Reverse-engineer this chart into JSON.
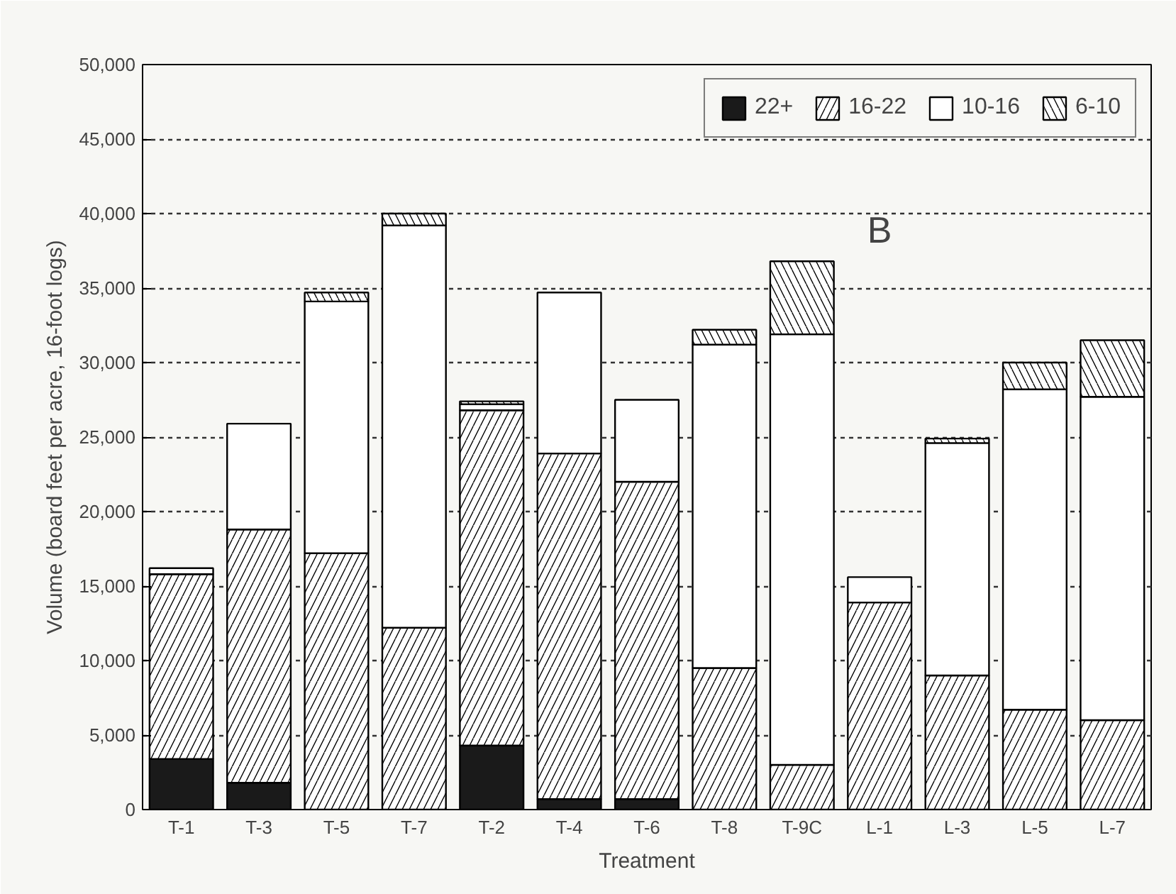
{
  "chart_data": {
    "type": "bar",
    "stacked": true,
    "xlabel": "Treatment",
    "ylabel": "Volume (board feet per acre, 16-foot logs)",
    "categories": [
      "T-1",
      "T-3",
      "T-5",
      "T-7",
      "T-2",
      "T-4",
      "T-6",
      "T-8",
      "T-9C",
      "L-1",
      "L-3",
      "L-5",
      "L-7"
    ],
    "series": [
      {
        "name": "22+",
        "color": "#1a1a1a",
        "values": [
          3400,
          1800,
          null,
          null,
          4300,
          700,
          700,
          null,
          null,
          null,
          null,
          null,
          null
        ]
      },
      {
        "name": "16-22",
        "color": "#ffffff",
        "values": [
          12400,
          17000,
          17200,
          12200,
          22500,
          23200,
          21300,
          9500,
          3000,
          13900,
          9000,
          6700,
          6000
        ]
      },
      {
        "name": "10-16",
        "color": "#ffffff",
        "values": [
          400,
          7100,
          16900,
          27000,
          400,
          10800,
          5500,
          21700,
          28900,
          1700,
          15600,
          21500,
          21700
        ]
      },
      {
        "name": "6-10",
        "color": "#ffffff",
        "values": [
          null,
          null,
          600,
          800,
          200,
          null,
          null,
          1000,
          4900,
          null,
          300,
          1800,
          3800
        ]
      }
    ],
    "ylim": [
      0,
      50000
    ],
    "yticks": [
      0,
      {
        "value": 5000,
        "label": "5,000"
      },
      {
        "value": 10000,
        "label": "10,000"
      },
      {
        "value": 15000,
        "label": "15,000"
      },
      {
        "value": 20000,
        "label": "20,000"
      },
      {
        "value": 25000,
        "label": "25,000"
      },
      {
        "value": 30000,
        "label": "30,000"
      },
      {
        "value": 35000,
        "label": "35,000"
      },
      {
        "value": 40000,
        "label": "40,000"
      },
      {
        "value": 45000,
        "label": "45,000"
      },
      {
        "value": 50000,
        "label": "50,000"
      }
    ],
    "grid": "y",
    "legend": "top right",
    "annotations": [
      "B"
    ]
  }
}
